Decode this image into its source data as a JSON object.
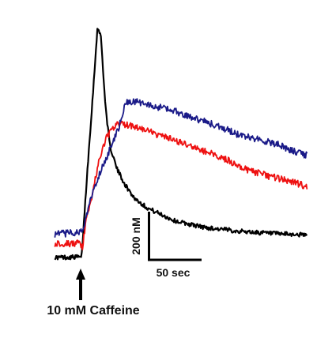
{
  "chart_data": {
    "type": "line",
    "title": "",
    "xlabel": "",
    "ylabel": "",
    "scale_bars": {
      "time": {
        "value": 50,
        "unit": "sec",
        "label": "50 sec"
      },
      "concentration": {
        "value": 200,
        "unit": "nM",
        "label": "200 nM"
      }
    },
    "annotation": {
      "text": "10 mM Caffeine",
      "at_time_sec": 0
    },
    "series": [
      {
        "color": "#000000",
        "x": [
          -30,
          -2,
          0,
          7,
          14,
          18,
          22,
          27,
          32,
          40,
          50,
          60,
          75,
          90,
          105,
          120,
          140,
          160,
          180,
          200,
          220,
          240,
          255
        ],
        "y": [
          10,
          12,
          5,
          300,
          575,
          745,
          720,
          500,
          370,
          295,
          240,
          200,
          168,
          148,
          128,
          118,
          106,
          100,
          94,
          90,
          86,
          84,
          82
        ]
      },
      {
        "color": "#ee1111",
        "x": [
          -30,
          -2,
          1,
          6,
          12,
          20,
          28,
          35,
          40,
          45,
          60,
          80,
          100,
          120,
          140,
          160,
          180,
          200,
          220,
          240,
          255
        ],
        "y": [
          55,
          55,
          40,
          140,
          210,
          320,
          395,
          420,
          435,
          440,
          430,
          410,
          390,
          370,
          350,
          330,
          300,
          280,
          265,
          250,
          238
        ]
      },
      {
        "color": "#1a1a88",
        "x": [
          -30,
          -2,
          4,
          12,
          22,
          32,
          42,
          48,
          52,
          60,
          80,
          100,
          120,
          140,
          160,
          180,
          200,
          220,
          240,
          255
        ],
        "y": [
          85,
          90,
          120,
          215,
          290,
          355,
          425,
          485,
          510,
          510,
          495,
          485,
          465,
          445,
          425,
          400,
          390,
          375,
          350,
          338
        ]
      }
    ]
  }
}
